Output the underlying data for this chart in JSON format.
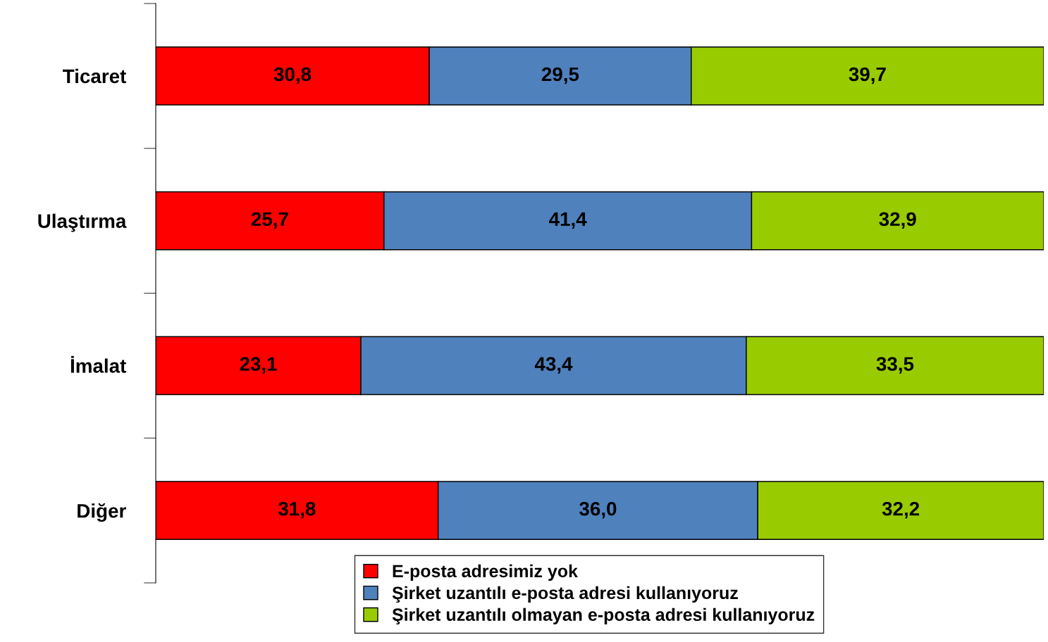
{
  "chart_data": {
    "type": "bar",
    "orientation": "horizontal",
    "stacked": true,
    "legend": "bottom",
    "grid": false,
    "tick_labels": "y",
    "categories": [
      "Ticaret",
      "Ulaştırma",
      "İmalat",
      "Diğer"
    ],
    "series": [
      {
        "name": "E-posta adresimiz yok",
        "color": "#ff0000",
        "values": [
          30.8,
          25.7,
          23.1,
          31.8
        ],
        "value_labels": [
          "30,8",
          "25,7",
          "23,1",
          "31,8"
        ]
      },
      {
        "name": "Şirket uzantılı e-posta adresi kullanıyoruz",
        "color": "#4f81bd",
        "values": [
          29.5,
          41.4,
          43.4,
          36.0
        ],
        "value_labels": [
          "29,5",
          "41,4",
          "43,4",
          "36,0"
        ]
      },
      {
        "name": "Şirket uzantılı olmayan e-posta adresi kullanıyoruz",
        "color": "#99cc00",
        "values": [
          39.7,
          32.9,
          33.5,
          32.2
        ],
        "value_labels": [
          "39,7",
          "32,9",
          "33,5",
          "32,2"
        ]
      }
    ]
  }
}
